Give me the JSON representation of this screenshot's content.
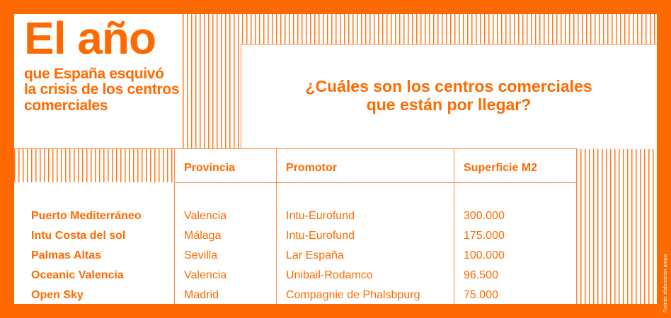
{
  "header": {
    "title": "El año",
    "subtitle": "que España esquivó la crisis de los centros comerciales",
    "question": "¿Cuáles son los centros comerciales que están por llegar?"
  },
  "table": {
    "columns": [
      "",
      "Provincia",
      "Promotor",
      "Superficie M2"
    ],
    "rows": [
      {
        "name": "Puerto Mediterráneo",
        "provincia": "Valencia",
        "promotor": "Intu-Eurofund",
        "superficie": "300.000"
      },
      {
        "name": "Intu Costa del sol",
        "provincia": "Málaga",
        "promotor": "Intu-Eurofund",
        "superficie": "175.000"
      },
      {
        "name": "Palmas Altas",
        "provincia": "Sevilla",
        "promotor": "Lar España",
        "superficie": "100.000"
      },
      {
        "name": "Oceanic Valencia",
        "provincia": "Valencia",
        "promotor": "Unibail-Rodamco",
        "superficie": "96.500"
      },
      {
        "name": "Open Sky",
        "provincia": "Madrid",
        "promotor": "Compagnie de Phalsbpurg",
        "superficie": "75.000"
      }
    ]
  },
  "source": "Fuente: elaboración propia",
  "colors": {
    "accent": "#ff6a00",
    "background": "#ffffff"
  }
}
